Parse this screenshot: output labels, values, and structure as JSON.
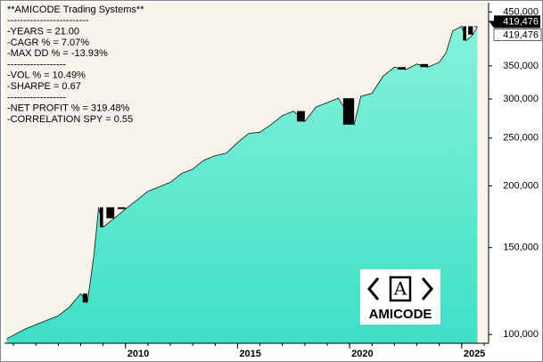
{
  "chart_data": {
    "type": "area",
    "stats": [
      "**AMICODE Trading Systems**",
      "-------------------------",
      "-YEARS  = 21.00",
      "-CAGR % = 7.07%",
      "-MAX DD %  = -13.93%",
      "------------------",
      "-VOL % = 10.49%",
      "-SHARPE = 0.67",
      "------------------",
      "-NET PROFIT % = 319.48%",
      "-CORRELATION SPY  = 0.55"
    ],
    "logo": {
      "mark": "A",
      "text": "AMICODE"
    },
    "x": [
      2004.7,
      2005.5,
      2006,
      2006.5,
      2007,
      2007.5,
      2008,
      2008.3,
      2008.6,
      2008.8,
      2009,
      2009.5,
      2010,
      2010.5,
      2011,
      2011.5,
      2012,
      2012.5,
      2013,
      2013.5,
      2014,
      2014.5,
      2015,
      2015.5,
      2016,
      2016.5,
      2017,
      2017.5,
      2018,
      2018.5,
      2019,
      2019.5,
      2020.2,
      2020.5,
      2021,
      2021.5,
      2022,
      2022.5,
      2023,
      2023.5,
      2024,
      2024.3,
      2024.6,
      2025,
      2025.2,
      2025.5,
      2025.7
    ],
    "series": [
      {
        "color": "#3ee0c6",
        "values": [
          98000,
          102500,
          104700,
          106900,
          109100,
          113700,
          121000,
          116100,
          145900,
          181000,
          165000,
          172000,
          179500,
          187000,
          195000,
          199100,
          203300,
          211900,
          216300,
          225500,
          230200,
          233000,
          244900,
          255500,
          257000,
          266200,
          277700,
          283500,
          270000,
          288800,
          294800,
          301000,
          266200,
          303600,
          308000,
          334000,
          348000,
          344000,
          353000,
          348000,
          356000,
          372000,
          412000,
          421000,
          394000,
          405000,
          419476
        ]
      }
    ],
    "last_value": 419476,
    "last_value_label": "419,476",
    "xlim": [
      2004.6,
      2026.2
    ],
    "xticks": [
      2010,
      2015,
      2020,
      2025
    ],
    "ylim": [
      96000,
      470000
    ],
    "log_y": true,
    "yticks": [
      {
        "value": 100000,
        "label": "100,000"
      },
      {
        "value": 150000,
        "label": "150,000"
      },
      {
        "value": 200000,
        "label": "200,000"
      },
      {
        "value": 250000,
        "label": "250,000"
      },
      {
        "value": 300000,
        "label": "300,000"
      },
      {
        "value": 350000,
        "label": "350,000"
      },
      {
        "value": 450000,
        "label": "450,000"
      }
    ]
  }
}
